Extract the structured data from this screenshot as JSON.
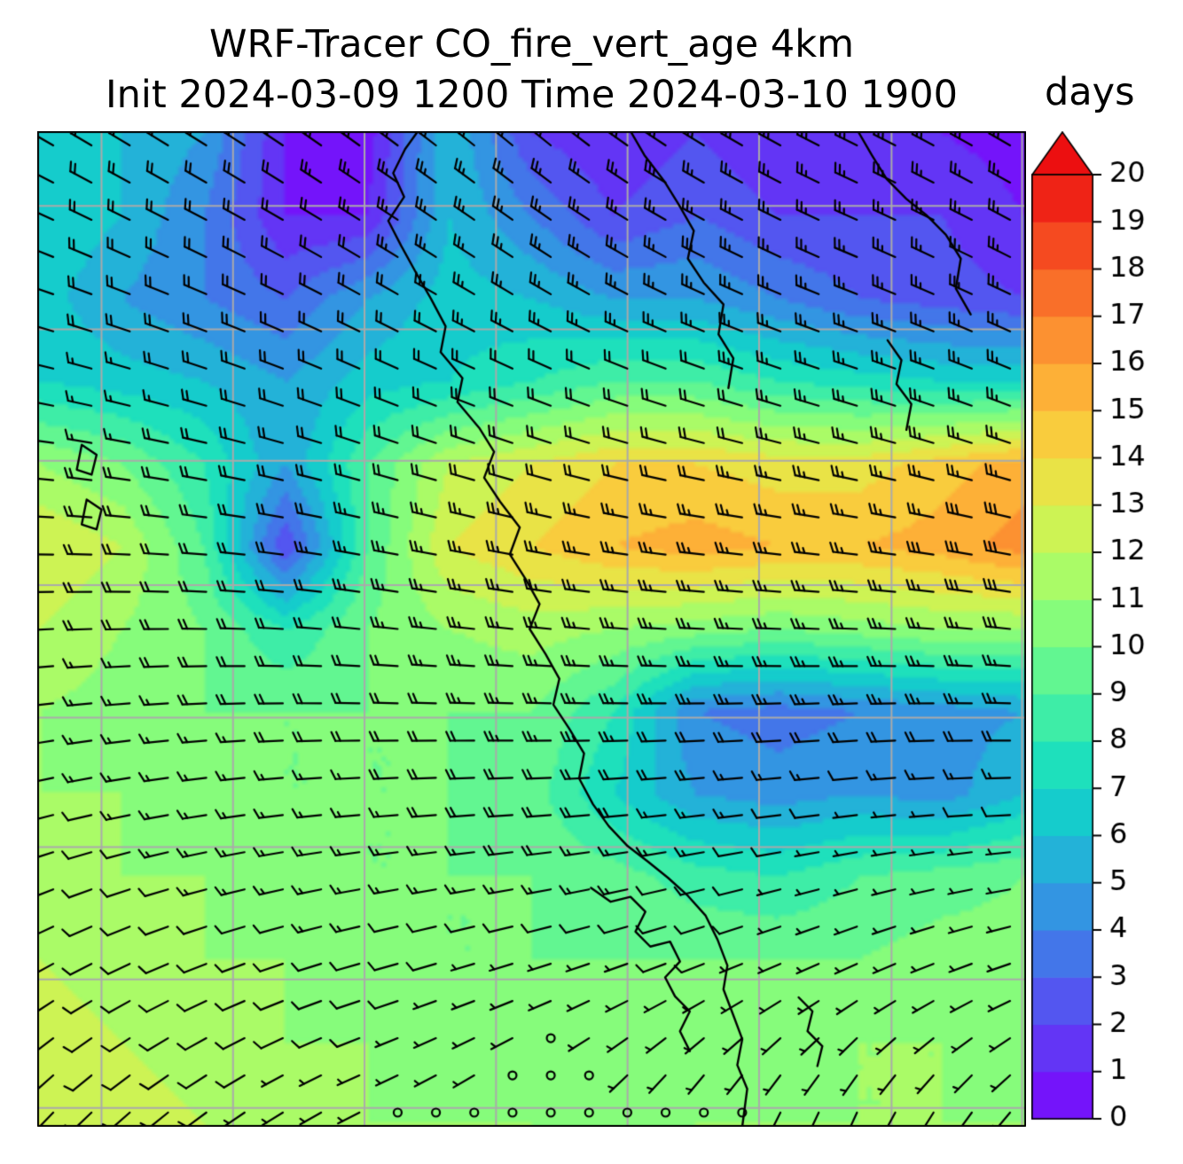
{
  "title": {
    "line1": "WRF-Tracer CO_fire_vert_age 4km",
    "line2": "Init 2024-03-09 1200 Time 2024-03-10 1900"
  },
  "colorbar": {
    "label": "days",
    "min": 0,
    "max": 20,
    "extend": "max",
    "ticks": [
      0,
      1,
      2,
      3,
      4,
      5,
      6,
      7,
      8,
      9,
      10,
      11,
      12,
      13,
      14,
      15,
      16,
      17,
      18,
      19,
      20
    ]
  },
  "chart_data": {
    "type": "heatmap",
    "title": "WRF-Tracer CO_fire_vert_age 4km",
    "subtitle": "Init 2024-03-09 1200 Time 2024-03-10 1900",
    "units": "days",
    "value_range": [
      0,
      20
    ],
    "colormap": {
      "name": "rainbow",
      "stops": [
        {
          "v": 0,
          "c": "#7c03fc"
        },
        {
          "v": 2,
          "c": "#5b46f3"
        },
        {
          "v": 4,
          "c": "#3b86e6"
        },
        {
          "v": 5,
          "c": "#2aa3dd"
        },
        {
          "v": 6,
          "c": "#1bc0d2"
        },
        {
          "v": 7,
          "c": "#0fd8c5"
        },
        {
          "v": 8,
          "c": "#2ce7b2"
        },
        {
          "v": 9,
          "c": "#4ff29c"
        },
        {
          "v": 10,
          "c": "#74fa85"
        },
        {
          "v": 11,
          "c": "#98fd70"
        },
        {
          "v": 12,
          "c": "#bcf95d"
        },
        {
          "v": 13,
          "c": "#ddec4b"
        },
        {
          "v": 14,
          "c": "#f4d940"
        },
        {
          "v": 15,
          "c": "#fdbf3a"
        },
        {
          "v": 16,
          "c": "#fda134"
        },
        {
          "v": 17,
          "c": "#fb812d"
        },
        {
          "v": 18,
          "c": "#f75d25"
        },
        {
          "v": 19,
          "c": "#f2361b"
        },
        {
          "v": 20,
          "c": "#ec0f10"
        }
      ]
    },
    "values_note": "approximate tracer vertical age field (days), 13x13 grid, row 0 = north/top",
    "values": [
      [
        6.5,
        6,
        5,
        1,
        0.5,
        6,
        2,
        1,
        2,
        1,
        1.5,
        1,
        0.5
      ],
      [
        7,
        6,
        4,
        1,
        1,
        6,
        4,
        2,
        3,
        2,
        2,
        2,
        1
      ],
      [
        6.5,
        5,
        4,
        3,
        5,
        6.5,
        6,
        5,
        5,
        4,
        3,
        2.5,
        2
      ],
      [
        7,
        6.5,
        6,
        5,
        6.5,
        7,
        8,
        9,
        9,
        8,
        7.5,
        7,
        7
      ],
      [
        11,
        10,
        8,
        5,
        9,
        12,
        13,
        14,
        14,
        13.5,
        13.5,
        14.5,
        15.5
      ],
      [
        13,
        12,
        9,
        2,
        9,
        13,
        14,
        15,
        15.5,
        15,
        15,
        15.5,
        16.5
      ],
      [
        12,
        11,
        10,
        8,
        10,
        11,
        11.5,
        11,
        10.5,
        10,
        10.5,
        11,
        11
      ],
      [
        11,
        10.5,
        10,
        10,
        10,
        10,
        10,
        8,
        4,
        3.5,
        4,
        4.5,
        5
      ],
      [
        11,
        11,
        10.5,
        10,
        10,
        10,
        9.5,
        7,
        5,
        4.5,
        5,
        4.5,
        6
      ],
      [
        11.5,
        11,
        11,
        10.5,
        10,
        10,
        10,
        9.5,
        8.5,
        8,
        9,
        9.5,
        10
      ],
      [
        12,
        11.5,
        11,
        11,
        10.5,
        10,
        10,
        10,
        10,
        10,
        10,
        10.5,
        10.5
      ],
      [
        12.5,
        12,
        11.5,
        11,
        11,
        10.5,
        10.5,
        10,
        10.5,
        10.5,
        11,
        11,
        10.5
      ],
      [
        13,
        12.5,
        12,
        11.5,
        11,
        11,
        11,
        10.5,
        11,
        11,
        11,
        11,
        11
      ]
    ],
    "wind_barbs": {
      "units": "knots",
      "dirs_from_deg": [
        [
          300,
          302,
          306,
          310,
          302,
          296,
          300
        ],
        [
          290,
          294,
          300,
          302,
          296,
          292,
          296
        ],
        [
          280,
          285,
          290,
          290,
          286,
          286,
          290
        ],
        [
          270,
          274,
          280,
          280,
          276,
          276,
          280
        ],
        [
          264,
          268,
          272,
          272,
          270,
          268,
          272
        ],
        [
          254,
          260,
          264,
          265,
          262,
          262,
          266
        ],
        [
          240,
          248,
          254,
          252,
          248,
          244,
          250
        ],
        [
          224,
          234,
          244,
          230,
          210,
          204,
          220
        ]
      ],
      "speeds_kt": [
        [
          18,
          20,
          25,
          25,
          25,
          25,
          25
        ],
        [
          18,
          20,
          22,
          25,
          25,
          25,
          25
        ],
        [
          15,
          18,
          20,
          20,
          20,
          25,
          25
        ],
        [
          20,
          20,
          25,
          25,
          25,
          25,
          30
        ],
        [
          15,
          18,
          20,
          25,
          25,
          25,
          25
        ],
        [
          10,
          15,
          15,
          20,
          15,
          3,
          5
        ],
        [
          8,
          10,
          12,
          3,
          8,
          4,
          6
        ],
        [
          10,
          8,
          3,
          2,
          2,
          4,
          6
        ]
      ]
    },
    "gridlines": {
      "x": [
        0.065,
        0.198,
        0.331,
        0.464,
        0.597,
        0.73,
        0.864,
        0.996
      ],
      "y": [
        0.075,
        0.199,
        0.331,
        0.456,
        0.589,
        0.719,
        0.852,
        0.981
      ]
    },
    "coastlines": [
      [
        [
          0.385,
          0.0
        ],
        [
          0.372,
          0.018
        ],
        [
          0.36,
          0.042
        ],
        [
          0.371,
          0.066
        ],
        [
          0.355,
          0.09
        ],
        [
          0.368,
          0.115
        ],
        [
          0.383,
          0.142
        ],
        [
          0.398,
          0.168
        ],
        [
          0.413,
          0.196
        ],
        [
          0.408,
          0.222
        ],
        [
          0.43,
          0.248
        ],
        [
          0.425,
          0.272
        ],
        [
          0.447,
          0.298
        ],
        [
          0.462,
          0.322
        ],
        [
          0.452,
          0.348
        ],
        [
          0.468,
          0.372
        ],
        [
          0.488,
          0.398
        ],
        [
          0.478,
          0.425
        ],
        [
          0.494,
          0.45
        ],
        [
          0.508,
          0.475
        ],
        [
          0.498,
          0.5
        ],
        [
          0.514,
          0.525
        ],
        [
          0.528,
          0.55
        ],
        [
          0.522,
          0.576
        ],
        [
          0.538,
          0.6
        ],
        [
          0.553,
          0.625
        ],
        [
          0.548,
          0.65
        ],
        [
          0.562,
          0.676
        ],
        [
          0.578,
          0.698
        ],
        [
          0.597,
          0.718
        ],
        [
          0.618,
          0.734
        ],
        [
          0.638,
          0.75
        ],
        [
          0.658,
          0.768
        ],
        [
          0.676,
          0.788
        ],
        [
          0.688,
          0.812
        ],
        [
          0.698,
          0.838
        ],
        [
          0.694,
          0.862
        ],
        [
          0.704,
          0.888
        ],
        [
          0.713,
          0.912
        ],
        [
          0.708,
          0.938
        ],
        [
          0.718,
          0.962
        ],
        [
          0.713,
          1.0
        ]
      ],
      [
        [
          0.6,
          0.0
        ],
        [
          0.614,
          0.024
        ],
        [
          0.634,
          0.05
        ],
        [
          0.649,
          0.074
        ],
        [
          0.664,
          0.1
        ],
        [
          0.658,
          0.128
        ],
        [
          0.674,
          0.152
        ],
        [
          0.694,
          0.174
        ],
        [
          0.689,
          0.204
        ],
        [
          0.704,
          0.228
        ],
        [
          0.699,
          0.258
        ]
      ],
      [
        [
          0.83,
          0.0
        ],
        [
          0.844,
          0.024
        ],
        [
          0.859,
          0.048
        ],
        [
          0.879,
          0.068
        ],
        [
          0.899,
          0.084
        ],
        [
          0.919,
          0.104
        ],
        [
          0.934,
          0.128
        ],
        [
          0.929,
          0.158
        ],
        [
          0.944,
          0.184
        ]
      ],
      [
        [
          0.86,
          0.21
        ],
        [
          0.874,
          0.23
        ],
        [
          0.869,
          0.254
        ],
        [
          0.884,
          0.274
        ],
        [
          0.879,
          0.3
        ]
      ],
      [
        [
          0.045,
          0.315
        ],
        [
          0.06,
          0.325
        ],
        [
          0.055,
          0.345
        ],
        [
          0.04,
          0.34
        ],
        [
          0.045,
          0.315
        ]
      ],
      [
        [
          0.05,
          0.37
        ],
        [
          0.065,
          0.38
        ],
        [
          0.06,
          0.4
        ],
        [
          0.045,
          0.395
        ],
        [
          0.05,
          0.37
        ]
      ],
      [
        [
          0.56,
          0.76
        ],
        [
          0.58,
          0.774
        ],
        [
          0.6,
          0.769
        ],
        [
          0.615,
          0.784
        ],
        [
          0.605,
          0.804
        ],
        [
          0.62,
          0.819
        ],
        [
          0.64,
          0.814
        ],
        [
          0.65,
          0.834
        ],
        [
          0.635,
          0.85
        ],
        [
          0.645,
          0.869
        ],
        [
          0.66,
          0.884
        ],
        [
          0.65,
          0.904
        ],
        [
          0.66,
          0.924
        ]
      ],
      [
        [
          0.77,
          0.87
        ],
        [
          0.784,
          0.884
        ],
        [
          0.779,
          0.904
        ],
        [
          0.794,
          0.919
        ],
        [
          0.789,
          0.939
        ]
      ]
    ],
    "legend_position": "right-colorbar",
    "grid_on": true
  }
}
